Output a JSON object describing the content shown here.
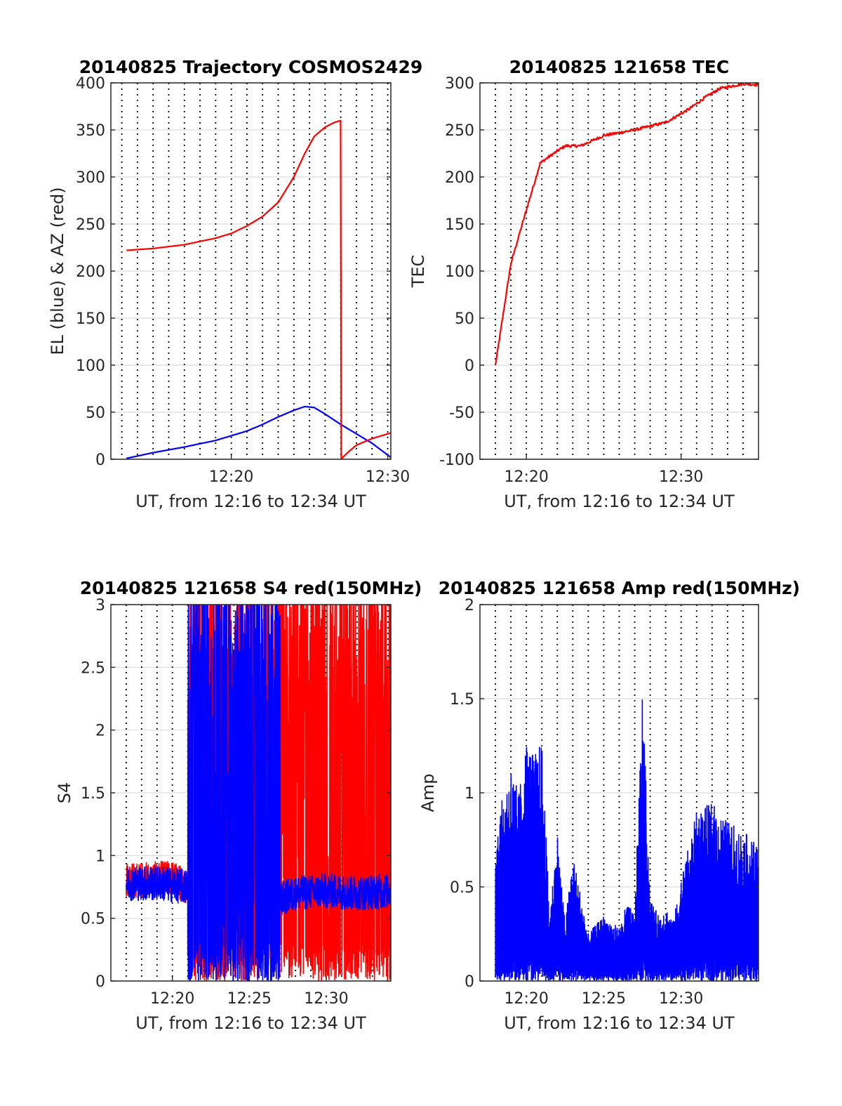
{
  "page_title": "",
  "chart_data": [
    {
      "type": "line",
      "title": "20140825 Trajectory COSMOS2429",
      "xlabel": "UT, from 12:16 to 12:34 UT",
      "ylabel": "EL (blue) & AZ (red)",
      "xlim": [
        12.3,
        30.2
      ],
      "ylim": [
        0,
        400
      ],
      "x_ticks": [
        {
          "v": 20,
          "label": "12:20"
        },
        {
          "v": 30,
          "label": "12:30"
        }
      ],
      "y_ticks": [
        0,
        50,
        100,
        150,
        200,
        250,
        300,
        350,
        400
      ],
      "grid": true,
      "colors": {
        "EL": "#0000ff",
        "AZ": "#ff0000"
      },
      "series": [
        {
          "name": "EL",
          "color": "#0000ff",
          "x": [
            13.3,
            15,
            17,
            19,
            20,
            21,
            22,
            23,
            24,
            24.7,
            25.3,
            26,
            27,
            28,
            29,
            30.2
          ],
          "y": [
            1,
            7,
            13,
            20,
            25,
            30,
            37,
            45,
            52,
            56,
            55,
            48,
            37,
            27,
            17,
            2
          ]
        },
        {
          "name": "AZ",
          "color": "#ff0000",
          "x": [
            13.3,
            15,
            17,
            19,
            20,
            21,
            22,
            23,
            24,
            24.7,
            25.3,
            26,
            26.6,
            27.0,
            27.0,
            27.5,
            28,
            29,
            30.2
          ],
          "y": [
            222,
            224,
            228,
            235,
            240,
            248,
            258,
            273,
            300,
            325,
            343,
            353,
            358,
            360,
            0,
            8,
            15,
            22,
            28
          ]
        }
      ]
    },
    {
      "type": "line",
      "title": "20140825 121658 TEC",
      "xlabel": "UT, from 12:16 to 12:34 UT",
      "ylabel": "TEC",
      "xlim": [
        17.0,
        35.0
      ],
      "ylim": [
        -100,
        300
      ],
      "x_ticks": [
        {
          "v": 20,
          "label": "12:20"
        },
        {
          "v": 30,
          "label": "12:30"
        }
      ],
      "y_ticks": [
        -100,
        -50,
        0,
        50,
        100,
        150,
        200,
        250,
        300
      ],
      "grid": true,
      "series": [
        {
          "name": "TEC",
          "color": "#ff0000",
          "x": [
            18.0,
            19.0,
            20.0,
            20.9,
            21.5,
            22.5,
            23.5,
            25,
            27,
            29,
            30.5,
            31.5,
            32.5,
            34,
            35
          ],
          "y": [
            0,
            108,
            165,
            215,
            222,
            233,
            233,
            244,
            250,
            258,
            272,
            284,
            294,
            299,
            298
          ]
        }
      ]
    },
    {
      "type": "line",
      "title": "20140825 121658 S4 red(150MHz)",
      "xlabel": "UT, from 12:16 to 12:34 UT",
      "ylabel": "S4",
      "xlim": [
        16.0,
        34.2
      ],
      "ylim": [
        0,
        3
      ],
      "x_ticks": [
        {
          "v": 20,
          "label": "12:20"
        },
        {
          "v": 25,
          "label": "12:25"
        },
        {
          "v": 30,
          "label": "12:30"
        }
      ],
      "y_ticks": [
        0,
        0.5,
        1,
        1.5,
        2,
        2.5,
        3
      ],
      "grid": true,
      "series": [
        {
          "name": "150MHz",
          "color": "#ff0000",
          "x": [
            17.0,
            20.0,
            21.0,
            22.0,
            23.5,
            25.0,
            26.5,
            28.0,
            30.0,
            32.0,
            34.2
          ],
          "y": [
            0.8,
            0.82,
            0.75,
            1.5,
            1.7,
            1.6,
            1.4,
            1.6,
            1.5,
            1.5,
            1.5
          ]
        },
        {
          "name": "",
          "color": "#0000ff",
          "x": [
            17.0,
            19.0,
            21.0,
            22.0,
            23.5,
            25.0,
            26.5,
            27.0,
            28.0,
            30.0,
            32.0,
            34.2
          ],
          "y": [
            0.78,
            0.78,
            0.75,
            1.8,
            1.7,
            1.8,
            1.8,
            0.65,
            0.7,
            0.72,
            0.7,
            0.72
          ]
        }
      ]
    },
    {
      "type": "line",
      "title": "20140825 121658 Amp red(150MHz)",
      "xlabel": "UT, from 12:16 to 12:34 UT",
      "ylabel": "Amp",
      "xlim": [
        17.0,
        35.0
      ],
      "ylim": [
        0,
        2
      ],
      "x_ticks": [
        {
          "v": 20,
          "label": "12:20"
        },
        {
          "v": 25,
          "label": "12:25"
        },
        {
          "v": 30,
          "label": "12:30"
        }
      ],
      "y_ticks": [
        0,
        0.5,
        1,
        1.5,
        2
      ],
      "grid": true,
      "series": [
        {
          "name": "",
          "color": "#0000ff",
          "x": [
            18.0,
            19.0,
            19.5,
            20.0,
            20.5,
            21.0,
            21.5,
            22.0,
            22.5,
            23.0,
            24.0,
            25.0,
            26.0,
            26.5,
            27.0,
            27.5,
            28.0,
            28.5,
            29.0,
            29.5,
            30.0,
            31.0,
            32.0,
            33.0,
            34.0,
            35.0
          ],
          "y": [
            0.82,
            1.15,
            1.0,
            1.28,
            1.2,
            1.28,
            0.35,
            0.8,
            0.3,
            0.68,
            0.25,
            0.35,
            0.28,
            0.42,
            0.35,
            1.55,
            0.45,
            0.35,
            0.4,
            0.32,
            0.55,
            0.9,
            0.95,
            0.85,
            0.8,
            0.72
          ]
        }
      ]
    }
  ]
}
